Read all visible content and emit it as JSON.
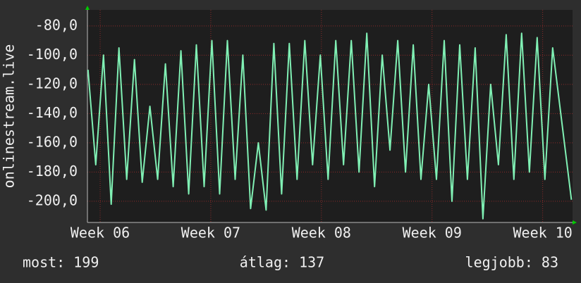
{
  "chart_data": {
    "type": "line",
    "ylabel": "onlinestream.live",
    "xlim": [
      5.885,
      10.27
    ],
    "xticks": [
      {
        "value": 6,
        "label": "Week 06"
      },
      {
        "value": 7,
        "label": "Week 07"
      },
      {
        "value": 8,
        "label": "Week 08"
      },
      {
        "value": 9,
        "label": "Week 09"
      },
      {
        "value": 10,
        "label": "Week 10"
      }
    ],
    "ylim": [
      -214.5,
      -69
    ],
    "yticks": [
      {
        "value": -80,
        "label": "-80,0"
      },
      {
        "value": -100,
        "label": "-100,0"
      },
      {
        "value": -120,
        "label": "-120,0"
      },
      {
        "value": -140,
        "label": "-140,0"
      },
      {
        "value": -160,
        "label": "-160,0"
      },
      {
        "value": -180,
        "label": "-180,0"
      },
      {
        "value": -200,
        "label": "-200,0"
      }
    ],
    "grid": true,
    "x": [
      5.89,
      5.96,
      6.03,
      6.1,
      6.17,
      6.24,
      6.31,
      6.38,
      6.45,
      6.52,
      6.59,
      6.66,
      6.73,
      6.8,
      6.87,
      6.94,
      7.01,
      7.08,
      7.15,
      7.22,
      7.29,
      7.36,
      7.43,
      7.5,
      7.57,
      7.64,
      7.71,
      7.78,
      7.85,
      7.92,
      7.99,
      8.06,
      8.13,
      8.2,
      8.27,
      8.34,
      8.41,
      8.48,
      8.55,
      8.62,
      8.69,
      8.76,
      8.83,
      8.9,
      8.97,
      9.04,
      9.11,
      9.18,
      9.25,
      9.32,
      9.39,
      9.46,
      9.53,
      9.6,
      9.67,
      9.74,
      9.81,
      9.88,
      9.95,
      10.02,
      10.09,
      10.26
    ],
    "series": [
      {
        "color": "#80f0b4",
        "values": [
          -110,
          -175,
          -100,
          -202,
          -95,
          -185,
          -103,
          -187,
          -135,
          -185,
          -106,
          -190,
          -97,
          -195,
          -93,
          -190,
          -90,
          -195,
          -90,
          -185,
          -100,
          -205,
          -160,
          -206,
          -92,
          -195,
          -92,
          -185,
          -90,
          -175,
          -100,
          -185,
          -90,
          -175,
          -90,
          -180,
          -85,
          -190,
          -100,
          -165,
          -90,
          -180,
          -93,
          -185,
          -120,
          -185,
          -90,
          -200,
          -93,
          -185,
          -95,
          -212,
          -120,
          -175,
          -86,
          -185,
          -85,
          -180,
          -88,
          -185,
          -95,
          -199
        ]
      }
    ],
    "stats": [
      "most: 199",
      "átlag: 137",
      "legjobb: 83"
    ]
  }
}
